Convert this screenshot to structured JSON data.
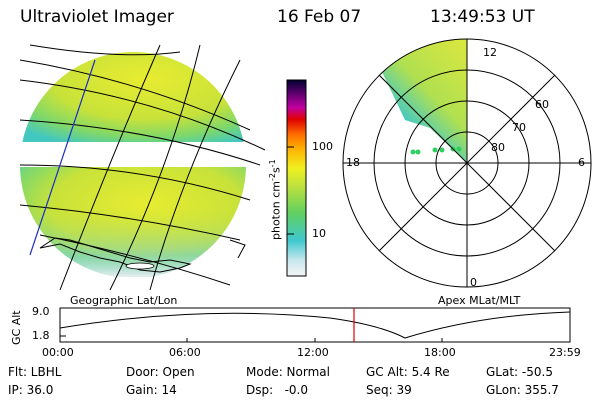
{
  "header": {
    "title": "Ultraviolet Imager",
    "date": "16 Feb 07",
    "time": "13:49:53 UT"
  },
  "panels": {
    "geo_label": "Geographic Lat/Lon",
    "apex_label": "Apex MLat/MLT"
  },
  "colorbar": {
    "unit_label": "photon cm",
    "unit_exp1": "-2",
    "unit_mid": "s",
    "unit_exp2": "-1",
    "tick_100": "100",
    "tick_10": "10",
    "scale": "log"
  },
  "polar": {
    "mlt_12": "12",
    "mlt_18": "18",
    "mlt_6": "6",
    "mlt_0": "0",
    "mlat_60": "60",
    "mlat_70": "70",
    "mlat_80": "80"
  },
  "altitude_plot": {
    "ylabel": "GC Alt",
    "y_top": "9.0",
    "y_bottom": "1.8",
    "x_ticks": [
      "00:00",
      "06:00",
      "12:00",
      "18:00",
      "23:59"
    ],
    "current_time_marker": "13:49:53",
    "marker_color": "#e00000"
  },
  "status": {
    "flt": "Flt: LBHL",
    "ip": "IP: 36.0",
    "door": "Door: Open",
    "gain": "Gain: 14",
    "mode": "Mode: Normal",
    "dsp": "Dsp:   -0.0",
    "gcalt": "GC Alt: 5.4 Re",
    "seq": "Seq: 39",
    "glat": "GLat: -50.5",
    "glon": "GLon: 355.7"
  }
}
